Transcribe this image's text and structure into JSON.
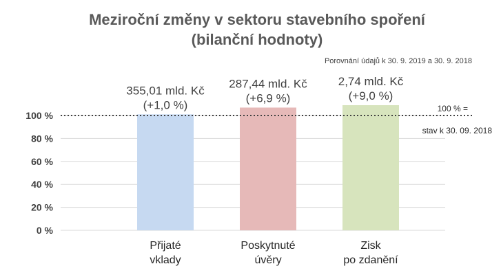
{
  "chart_data": {
    "type": "bar",
    "title_line1": "Meziroční změny v sektoru stavebního spoření",
    "title_line2": "(bilanční hodnoty)",
    "subtitle": "Porovnání údajů k 30. 9. 2019 a 30. 9. 2018",
    "categories": [
      [
        "Přijaté",
        "vklady"
      ],
      [
        "Poskytnuté",
        "úvěry"
      ],
      [
        "Zisk",
        "po zdanění"
      ]
    ],
    "values": [
      101.0,
      106.9,
      109.0
    ],
    "amount_labels": [
      "355,01 mld. Kč",
      "287,44 mld. Kč",
      "2,74 mld. Kč"
    ],
    "change_labels": [
      "(+1,0 %)",
      "(+6,9 %)",
      "(+9,0 %)"
    ],
    "colors": [
      "#c6d9f1",
      "#e6b9b8",
      "#d7e4bd"
    ],
    "ylim": [
      0,
      100
    ],
    "y_ticks": [
      "0 %",
      "20 %",
      "40 %",
      "60 %",
      "80 %",
      "100 %"
    ],
    "grid": true,
    "reference_line": {
      "value": 100,
      "label_line1": "100 % =",
      "label_line2": "stav k 30. 09. 2018"
    }
  }
}
